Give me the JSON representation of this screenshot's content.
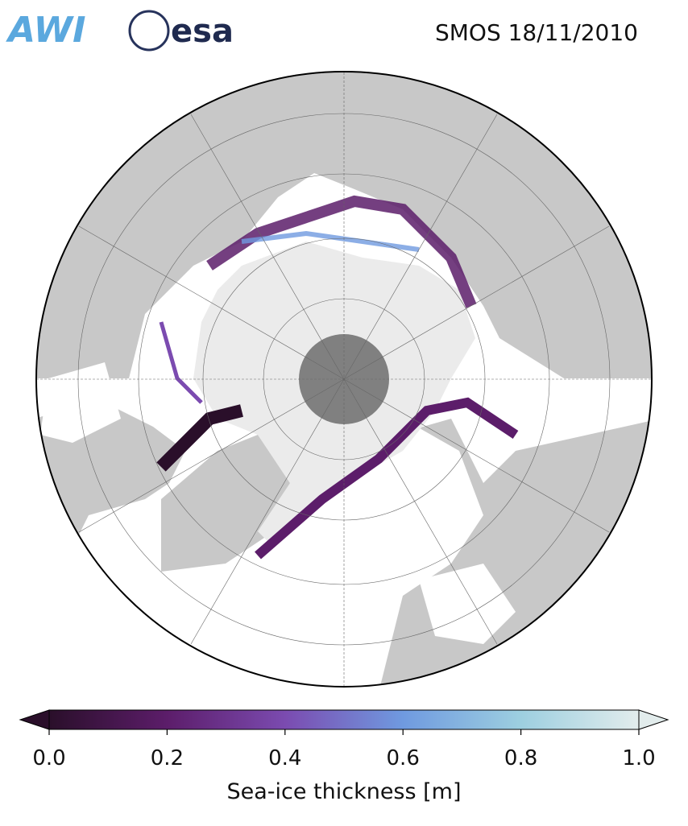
{
  "header": {
    "logos": [
      "AWI",
      "esa"
    ],
    "title": "SMOS 18/11/2010"
  },
  "colorbar": {
    "label": "Sea-ice thickness [m]",
    "lim": [
      0,
      1
    ],
    "ticks": [
      {
        "value": 0,
        "label": "0.0"
      },
      {
        "value": 0.2,
        "label": "0.2"
      },
      {
        "value": 0.4,
        "label": "0.4"
      },
      {
        "value": 0.6,
        "label": "0.6"
      },
      {
        "value": 0.8,
        "label": "0.8"
      },
      {
        "value": 1,
        "label": "1.0"
      }
    ],
    "colors": [
      "#2a0f2a",
      "#5c1d6a",
      "#7b4bb0",
      "#6f9ae0",
      "#9dcfe0",
      "#e2ecec"
    ]
  }
}
